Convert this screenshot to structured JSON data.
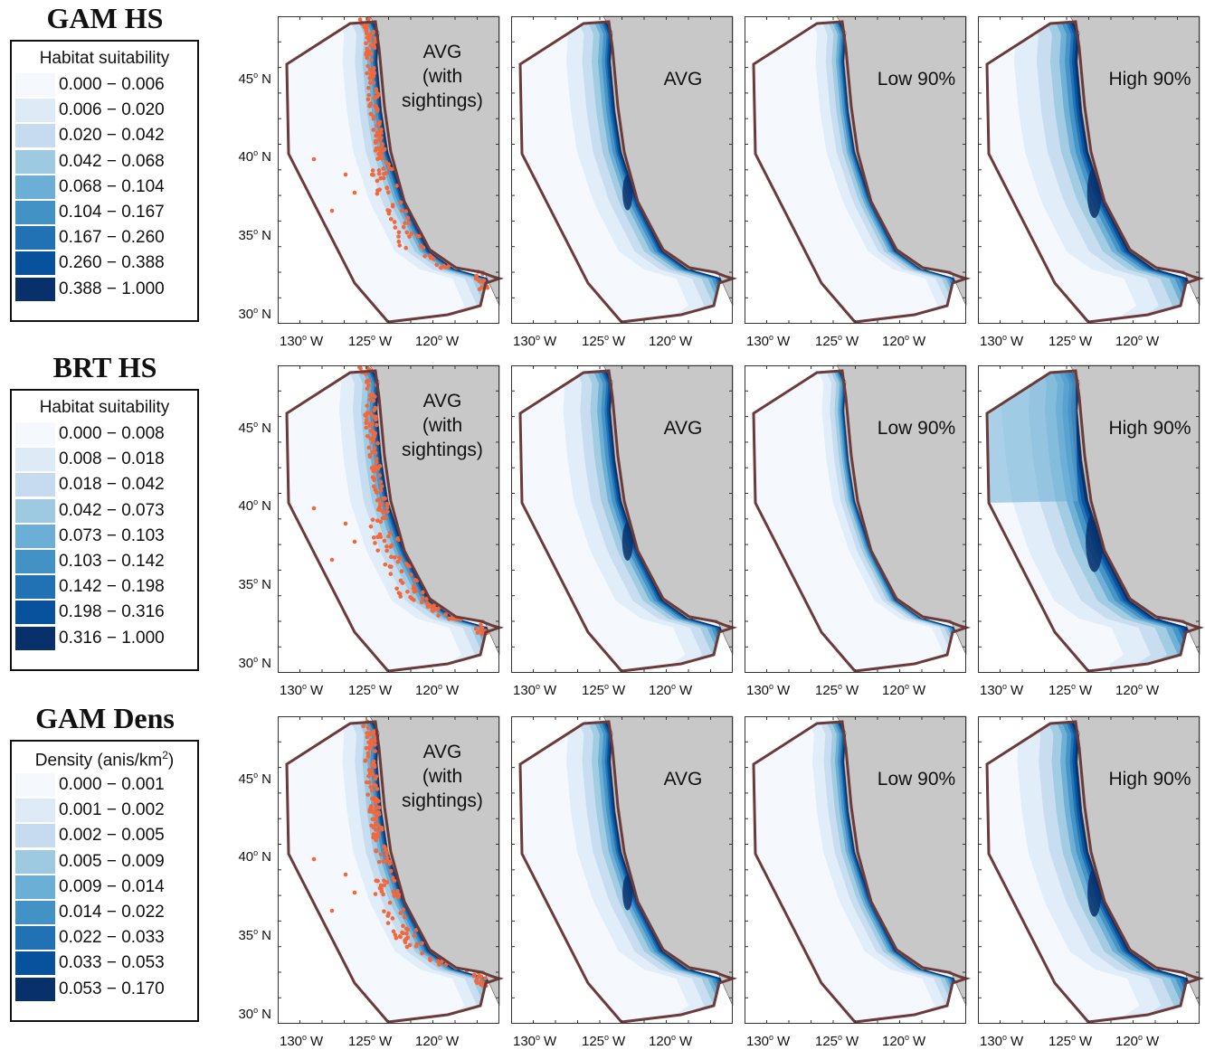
{
  "rows": [
    {
      "title": "GAM HS",
      "legend": {
        "title": "Habitat suitability",
        "sup": "",
        "items": [
          {
            "label": "0.000 − 0.006",
            "color": "#f5f9fe"
          },
          {
            "label": "0.006 − 0.020",
            "color": "#deebf7"
          },
          {
            "label": "0.020 − 0.042",
            "color": "#c6dbef"
          },
          {
            "label": "0.042 − 0.068",
            "color": "#9ecae1"
          },
          {
            "label": "0.068 − 0.104",
            "color": "#6baed6"
          },
          {
            "label": "0.104 − 0.167",
            "color": "#4292c6"
          },
          {
            "label": "0.167 − 0.260",
            "color": "#2171b5"
          },
          {
            "label": "0.260 − 0.388",
            "color": "#08519c"
          },
          {
            "label": "0.388 − 1.000",
            "color": "#08306b"
          }
        ]
      },
      "lat_labels": [
        "45",
        "40",
        "35",
        "30"
      ],
      "panels": [
        {
          "label": "AVG (with sightings)",
          "label_lines": [
            "AVG",
            "(with",
            "sightings)"
          ],
          "intensity": 0.55,
          "sightings": true
        },
        {
          "label": "AVG",
          "label_lines": [
            "AVG"
          ],
          "intensity": 0.7,
          "sightings": false
        },
        {
          "label": "Low 90%",
          "label_lines": [
            "Low 90%"
          ],
          "intensity": 0.45,
          "sightings": false
        },
        {
          "label": "High 90%",
          "label_lines": [
            "High 90%"
          ],
          "intensity": 1.0,
          "sightings": false
        }
      ]
    },
    {
      "title": "BRT HS",
      "legend": {
        "title": "Habitat suitability",
        "sup": "",
        "items": [
          {
            "label": "0.000 − 0.008",
            "color": "#f5f9fe"
          },
          {
            "label": "0.008 − 0.018",
            "color": "#deebf7"
          },
          {
            "label": "0.018 − 0.042",
            "color": "#c6dbef"
          },
          {
            "label": "0.042 − 0.073",
            "color": "#9ecae1"
          },
          {
            "label": "0.073 − 0.103",
            "color": "#6baed6"
          },
          {
            "label": "0.103 − 0.142",
            "color": "#4292c6"
          },
          {
            "label": "0.142 − 0.198",
            "color": "#2171b5"
          },
          {
            "label": "0.198 − 0.316",
            "color": "#08519c"
          },
          {
            "label": "0.316 − 1.000",
            "color": "#08306b"
          }
        ]
      },
      "lat_labels": [
        "45",
        "40",
        "35",
        "30"
      ],
      "panels": [
        {
          "label": "AVG (with sightings)",
          "label_lines": [
            "AVG",
            "(with",
            "sightings)"
          ],
          "intensity": 0.6,
          "sightings": true
        },
        {
          "label": "AVG",
          "label_lines": [
            "AVG"
          ],
          "intensity": 0.75,
          "sightings": false
        },
        {
          "label": "Low 90%",
          "label_lines": [
            "Low 90%"
          ],
          "intensity": 0.35,
          "sightings": false
        },
        {
          "label": "High 90%",
          "label_lines": [
            "High 90%"
          ],
          "intensity": 1.2,
          "sightings": false
        }
      ]
    },
    {
      "title": "GAM Dens",
      "legend": {
        "title": "Density (anis/km",
        "sup": "2",
        "title_suffix": ")",
        "items": [
          {
            "label": "0.000 − 0.001",
            "color": "#f5f9fe"
          },
          {
            "label": "0.001 − 0.002",
            "color": "#deebf7"
          },
          {
            "label": "0.002 − 0.005",
            "color": "#c6dbef"
          },
          {
            "label": "0.005 − 0.009",
            "color": "#9ecae1"
          },
          {
            "label": "0.009 − 0.014",
            "color": "#6baed6"
          },
          {
            "label": "0.014 − 0.022",
            "color": "#4292c6"
          },
          {
            "label": "0.022 − 0.033",
            "color": "#2171b5"
          },
          {
            "label": "0.033 − 0.053",
            "color": "#08519c"
          },
          {
            "label": "0.053 − 0.170",
            "color": "#08306b"
          }
        ]
      },
      "lat_labels": [
        "45",
        "40",
        "35",
        "30"
      ],
      "panels": [
        {
          "label": "AVG (with sightings)",
          "label_lines": [
            "AVG",
            "(with",
            "sightings)"
          ],
          "intensity": 0.55,
          "sightings": true
        },
        {
          "label": "AVG",
          "label_lines": [
            "AVG"
          ],
          "intensity": 0.7,
          "sightings": false
        },
        {
          "label": "Low 90%",
          "label_lines": [
            "Low 90%"
          ],
          "intensity": 0.5,
          "sightings": false
        },
        {
          "label": "High 90%",
          "label_lines": [
            "High 90%"
          ],
          "intensity": 0.95,
          "sightings": false
        }
      ]
    }
  ],
  "lon_labels": [
    "130",
    "125",
    "120"
  ],
  "lat_suffix": "N",
  "lon_suffix": "W",
  "degree": "o",
  "colors": {
    "land": "#c8c8c8",
    "boundary": "#6b3a3a",
    "sightings": "#f4673a",
    "ocean_low": "#f5f9fe"
  }
}
